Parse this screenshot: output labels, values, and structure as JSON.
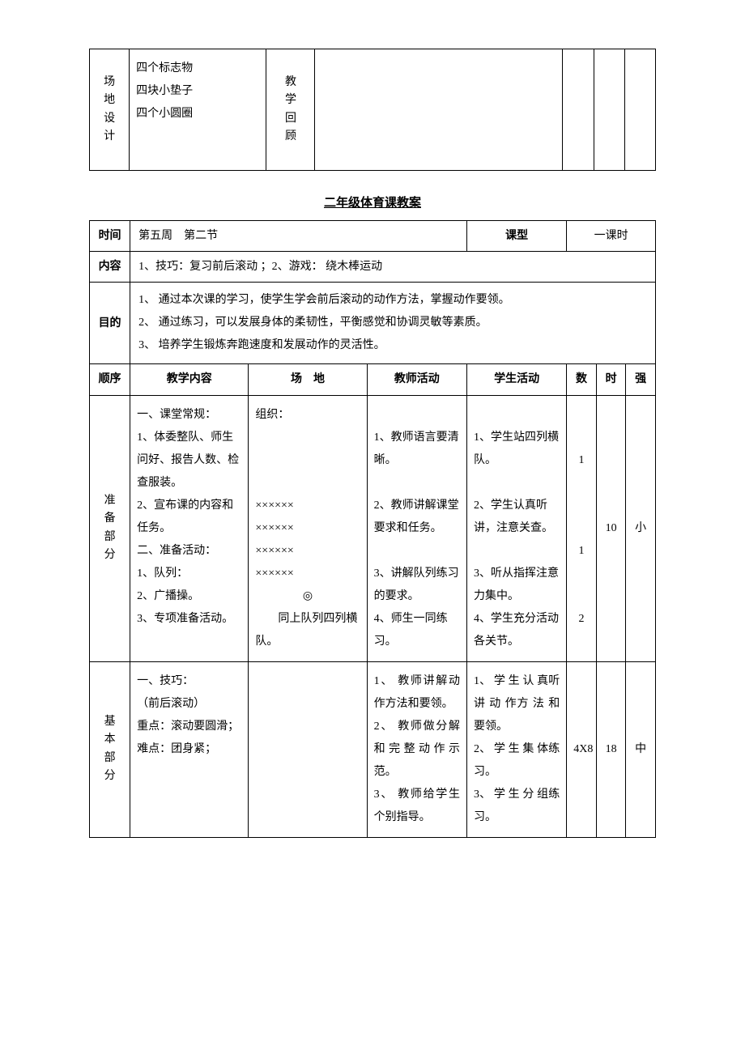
{
  "table1": {
    "col1_label": "场地设计",
    "col2_lines": [
      "四个标志物",
      "四块小垫子",
      "四个小圆圈"
    ],
    "col3_label": "教学回顾"
  },
  "section_title": "二年级体育课教案",
  "lesson": {
    "row1": {
      "label_time": "时间",
      "time_value": "第五周　第二节",
      "label_type": "课型",
      "type_value": "一课时"
    },
    "row2": {
      "label": "内容",
      "value": "1、技巧：复习前后滚动 ；2、游戏： 绕木棒运动"
    },
    "row3": {
      "label": "目的",
      "line1": "1、 通过本次课的学习，使学生学会前后滚动的动作方法，掌握动作要领。",
      "line2": "2、 通过练习，可以发展身体的柔韧性，平衡感觉和协调灵敏等素质。",
      "line3": "3、 培养学生锻炼奔跑速度和发展动作的灵活性。"
    },
    "headers": {
      "h1": "顺序",
      "h2": "教学内容",
      "h3": "场　地",
      "h4": "教师活动",
      "h5": "学生活动",
      "h6": "数",
      "h7": "时",
      "h8": "强"
    },
    "prep": {
      "label": "准备部分",
      "content": "一、课堂常规：\n1、体委整队、师生问好、报告人数、检查服装。\n2、宣布课的内容和任务。\n二、准备活动：\n1、队列：\n2、广播操。\n3、专项准备活动。",
      "field": "组织：\n\n\n\n×××××× \n×××××× \n×××××× \n×××××× \n◎\n同上队列四列横队。",
      "teacher": "\n1、教师语言要清晰。\n\n2、教师讲解课堂要求和任务。\n\n3、讲解队列练习的要求。\n4、师生一同练习。",
      "student": "\n1、学生站四列横队。\n\n2、学生认真听讲，注意关查。\n\n3、听从指挥注意力集中。\n4、学生充分活动各关节。",
      "count": "\n\n1\n\n\n\n1\n\n\n2",
      "time": "10",
      "intensity": "小"
    },
    "basic": {
      "label": "基本部分",
      "content": "一、技巧：\n（前后滚动）\n重点：滚动要圆滑；\n难点：团身紧；",
      "field": "",
      "teacher": "1、 教师讲解动作方法和要领。\n2、 教师做分解和完整动作示范。\n3、 教师给学生个别指导。",
      "student": "1、 学 生 认 真听 讲 动 作方 法 和 要领。\n2、 学 生 集 体练习。\n3、 学 生 分 组练习。",
      "count": "4X8",
      "time": "18",
      "intensity": "中"
    }
  }
}
